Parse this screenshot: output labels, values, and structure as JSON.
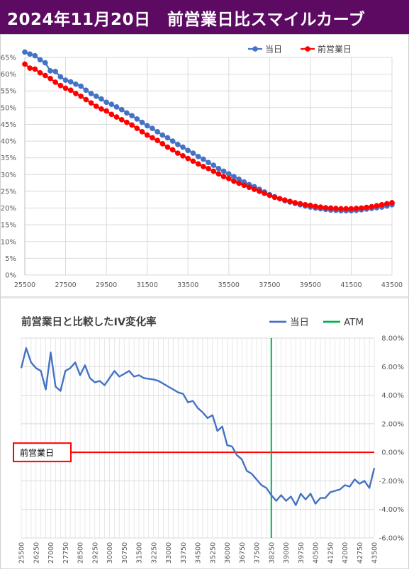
{
  "header": {
    "title": "2024年11月20日　前営業日比スマイルカーブ"
  },
  "colors": {
    "banner": "#5c0a62",
    "today": "#4472c4",
    "prev": "#ff0000",
    "atm": "#00b050"
  },
  "chart_data": [
    {
      "type": "line",
      "title": "",
      "x": [
        25500,
        25750,
        26000,
        26250,
        26500,
        26750,
        27000,
        27250,
        27500,
        27750,
        28000,
        28250,
        28500,
        28750,
        29000,
        29250,
        29500,
        29750,
        30000,
        30250,
        30500,
        30750,
        31000,
        31250,
        31500,
        31750,
        32000,
        32250,
        32500,
        32750,
        33000,
        33250,
        33500,
        33750,
        34000,
        34250,
        34500,
        34750,
        35000,
        35250,
        35500,
        35750,
        36000,
        36250,
        36500,
        36750,
        37000,
        37250,
        37500,
        37750,
        38000,
        38250,
        38500,
        38750,
        39000,
        39250,
        39500,
        39750,
        40000,
        40250,
        40500,
        40750,
        41000,
        41250,
        41500,
        41750,
        42000,
        42250,
        42500,
        42750,
        43000,
        43250,
        43500
      ],
      "series": [
        {
          "name": "当日",
          "color": "#4472c4",
          "values": [
            66.6,
            66.0,
            65.5,
            64.3,
            63.4,
            61.0,
            60.8,
            59.2,
            58.2,
            57.7,
            57.0,
            56.4,
            55.2,
            54.2,
            53.4,
            52.6,
            51.6,
            51.0,
            50.2,
            49.4,
            48.4,
            47.6,
            46.6,
            45.6,
            44.6,
            43.8,
            42.8,
            41.8,
            41.0,
            40.0,
            39.0,
            38.2,
            37.2,
            36.4,
            35.4,
            34.6,
            33.6,
            32.8,
            31.8,
            31.0,
            30.2,
            29.4,
            28.6,
            27.8,
            27.0,
            26.4,
            25.6,
            24.8,
            24.0,
            23.4,
            22.8,
            22.2,
            21.8,
            21.4,
            21.0,
            20.6,
            20.3,
            20.0,
            19.8,
            19.6,
            19.4,
            19.3,
            19.2,
            19.2,
            19.2,
            19.3,
            19.5,
            19.7,
            19.9,
            20.1,
            20.3,
            20.6,
            21.0
          ]
        },
        {
          "name": "前営業日",
          "color": "#ff0000",
          "values": [
            63.0,
            61.8,
            61.5,
            60.4,
            59.6,
            58.7,
            57.6,
            56.6,
            55.8,
            55.2,
            54.2,
            53.4,
            52.4,
            51.4,
            50.4,
            49.6,
            49.0,
            48.0,
            47.2,
            46.4,
            45.6,
            44.8,
            43.8,
            42.8,
            41.8,
            41.0,
            40.2,
            39.2,
            38.2,
            37.4,
            36.4,
            35.6,
            34.8,
            34.0,
            33.2,
            32.4,
            31.8,
            31.0,
            30.2,
            29.4,
            28.8,
            28.0,
            27.4,
            26.8,
            26.2,
            25.6,
            25.0,
            24.4,
            23.8,
            23.2,
            22.8,
            22.4,
            22.0,
            21.6,
            21.3,
            21.0,
            20.8,
            20.5,
            20.3,
            20.1,
            20.0,
            19.9,
            19.8,
            19.8,
            19.8,
            19.9,
            20.0,
            20.2,
            20.4,
            20.7,
            21.0,
            21.3,
            21.6
          ]
        }
      ],
      "legend": [
        "当日",
        "前営業日"
      ],
      "legend_position": "top-right",
      "xlabel": "",
      "ylabel": "",
      "xlim": [
        25500,
        43500
      ],
      "ylim": [
        0,
        65
      ],
      "x_ticks": [
        "25500",
        "27500",
        "29500",
        "31500",
        "33500",
        "35500",
        "37500",
        "39500",
        "41500",
        "43500"
      ],
      "y_ticks": [
        "0%",
        "5%",
        "10%",
        "15%",
        "20%",
        "25%",
        "30%",
        "35%",
        "40%",
        "45%",
        "50%",
        "55%",
        "60%",
        "65%"
      ],
      "grid": true
    },
    {
      "type": "line",
      "title": "前営業日と比較したIV変化率",
      "x": [
        25500,
        25750,
        26000,
        26250,
        26500,
        26750,
        27000,
        27250,
        27500,
        27750,
        28000,
        28250,
        28500,
        28750,
        29000,
        29250,
        29500,
        29750,
        30000,
        30250,
        30500,
        30750,
        31000,
        31250,
        31500,
        31750,
        32000,
        32250,
        32500,
        32750,
        33000,
        33250,
        33500,
        33750,
        34000,
        34250,
        34500,
        34750,
        35000,
        35250,
        35500,
        35750,
        36000,
        36250,
        36500,
        36750,
        37000,
        37250,
        37500,
        37750,
        38000,
        38250,
        38500,
        38750,
        39000,
        39250,
        39500,
        39750,
        40000,
        40250,
        40500,
        40750,
        41000,
        41250,
        41500,
        41750,
        42000,
        42250,
        42500,
        42750,
        43000,
        43250,
        43500
      ],
      "series": [
        {
          "name": "当日",
          "color": "#4472c4",
          "values": [
            5.9,
            7.3,
            6.3,
            5.9,
            5.7,
            4.4,
            7.0,
            4.6,
            4.3,
            5.7,
            5.9,
            6.3,
            5.4,
            6.1,
            5.2,
            4.9,
            5.0,
            4.7,
            5.2,
            5.7,
            5.3,
            5.5,
            5.7,
            5.3,
            5.4,
            5.2,
            5.15,
            5.1,
            5.0,
            4.8,
            4.6,
            4.4,
            4.2,
            4.1,
            3.5,
            3.6,
            3.1,
            2.8,
            2.4,
            2.6,
            1.5,
            1.8,
            0.5,
            0.4,
            -0.2,
            -0.5,
            -1.3,
            -1.5,
            -1.9,
            -2.3,
            -2.5,
            -3.0,
            -3.4,
            -3.0,
            -3.4,
            -3.1,
            -3.7,
            -2.9,
            -3.3,
            -2.9,
            -3.6,
            -3.2,
            -3.2,
            -2.8,
            -2.7,
            -2.6,
            -2.3,
            -2.4,
            -1.9,
            -2.2,
            -2.0,
            -2.5,
            -1.1
          ]
        }
      ],
      "legend": [
        "当日",
        "ATM"
      ],
      "legend_position": "top-right",
      "atm": {
        "name": "ATM",
        "x": 38250,
        "color": "#00b050"
      },
      "baseline": {
        "label": "前営業日",
        "y": 0,
        "color": "#ff0000"
      },
      "xlabel": "",
      "ylabel": "",
      "xlim": [
        25500,
        43500
      ],
      "ylim": [
        -6.0,
        8.0
      ],
      "x_ticks": [
        "25500",
        "26000",
        "26500",
        "27000",
        "27500",
        "28000",
        "28500",
        "29000",
        "29500",
        "30000",
        "30500",
        "31000",
        "31500",
        "32000",
        "32500",
        "33000",
        "33500",
        "34000",
        "34500",
        "35000",
        "35500",
        "36000",
        "36500",
        "37000",
        "37500",
        "38000",
        "38500",
        "39000",
        "39500",
        "40000",
        "40500",
        "41000",
        "41500",
        "42000",
        "42500",
        "43000",
        "43500"
      ],
      "x_tick_labels": [
        "25500",
        "26250",
        "27000",
        "27750",
        "28500",
        "29250",
        "30000",
        "30750",
        "31500",
        "32250",
        "33000",
        "33750",
        "34500",
        "35250",
        "36000",
        "36750",
        "37500",
        "38250",
        "39000",
        "39750",
        "40500",
        "41250",
        "42000",
        "42750",
        "43500"
      ],
      "y_ticks": [
        "8.00%",
        "6.00%",
        "4.00%",
        "2.00%",
        "0.00%",
        "-2.00%",
        "-4.00%",
        "-6.00%"
      ],
      "grid": true
    }
  ]
}
